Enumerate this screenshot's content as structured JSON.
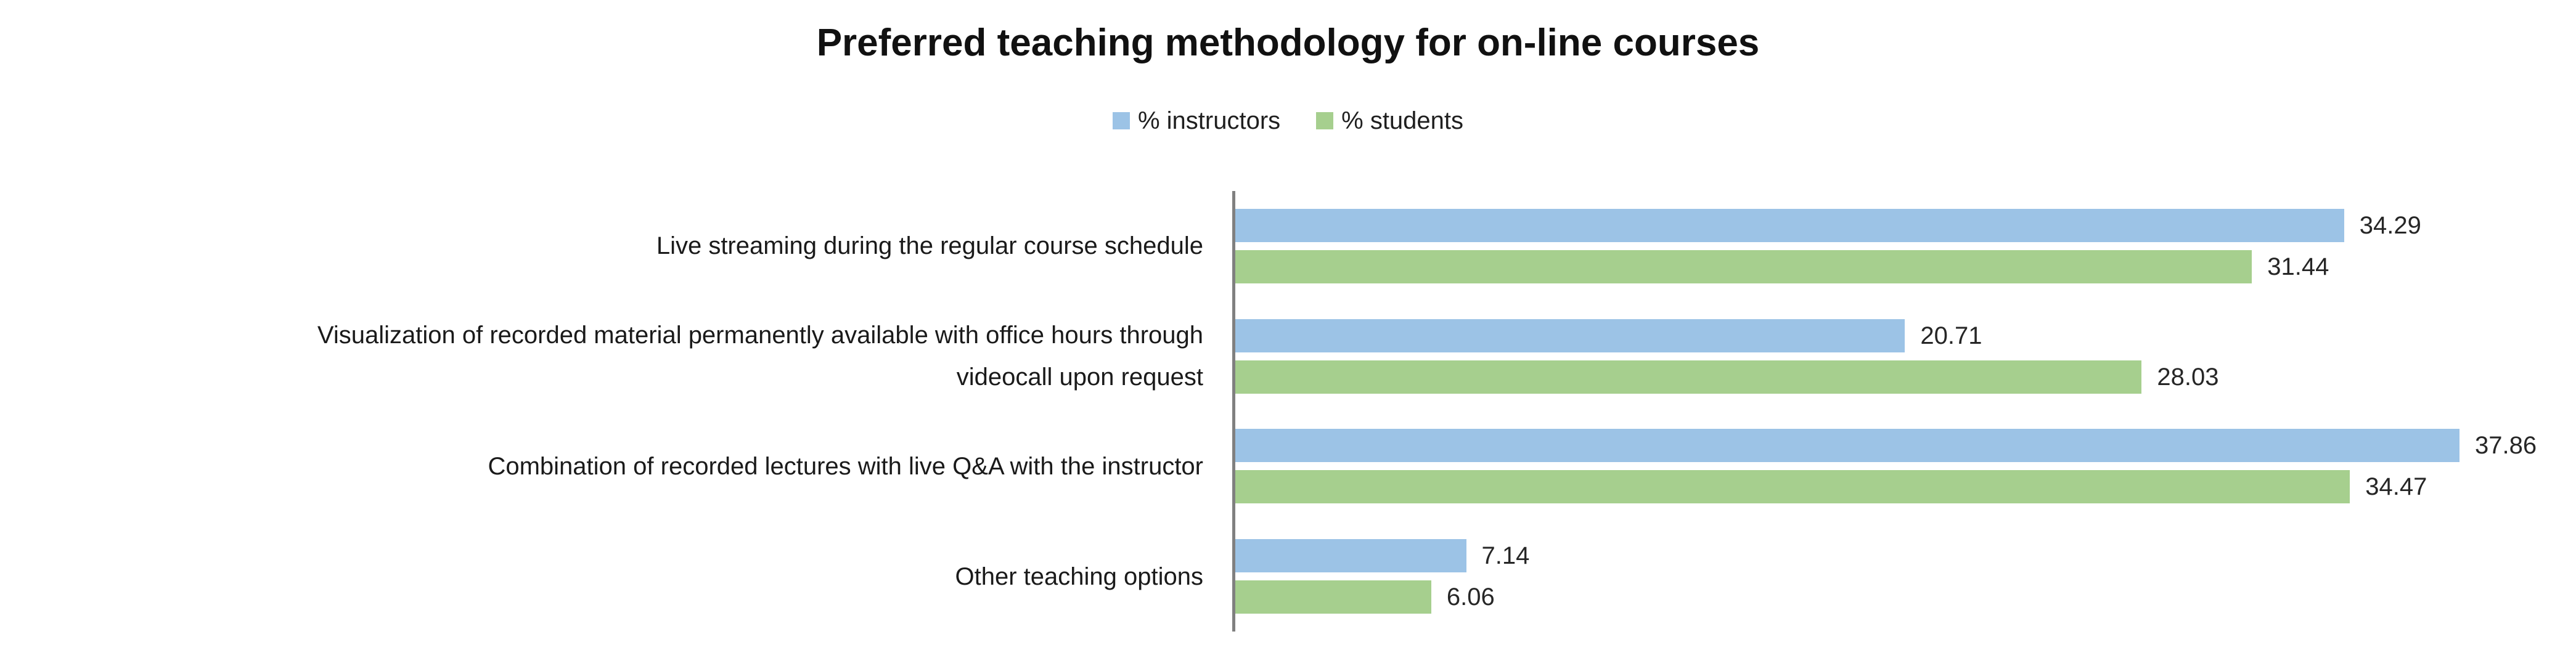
{
  "chart_data": {
    "type": "bar",
    "orientation": "horizontal",
    "title": "Preferred teaching methodology for on-line courses",
    "categories": [
      "Live streaming during the regular course schedule",
      "Visualization of recorded material permanently available with office hours through videocall upon request",
      "Combination of recorded lectures with live Q&A with the instructor",
      "Other teaching options"
    ],
    "category_display_lines": [
      [
        "Live streaming during the regular course schedule"
      ],
      [
        "Visualization of recorded material permanently available with office hours through",
        "videocall upon request"
      ],
      [
        "Combination of recorded lectures with live Q&A with the instructor"
      ],
      [
        "Other teaching options"
      ]
    ],
    "series": [
      {
        "name": "% instructors",
        "color": "#9CC3E6",
        "values": [
          34.29,
          20.71,
          37.86,
          7.14
        ]
      },
      {
        "name": "% students",
        "color": "#A6CF8E",
        "values": [
          31.44,
          28.03,
          34.47,
          6.06
        ]
      }
    ],
    "value_labels_shown": true,
    "value_label_format": "0.00",
    "xlim": [
      0,
      41.5
    ],
    "grid": false,
    "legend_position": "top-center",
    "axis_line_color": "#808080",
    "background_color": "#ffffff"
  }
}
